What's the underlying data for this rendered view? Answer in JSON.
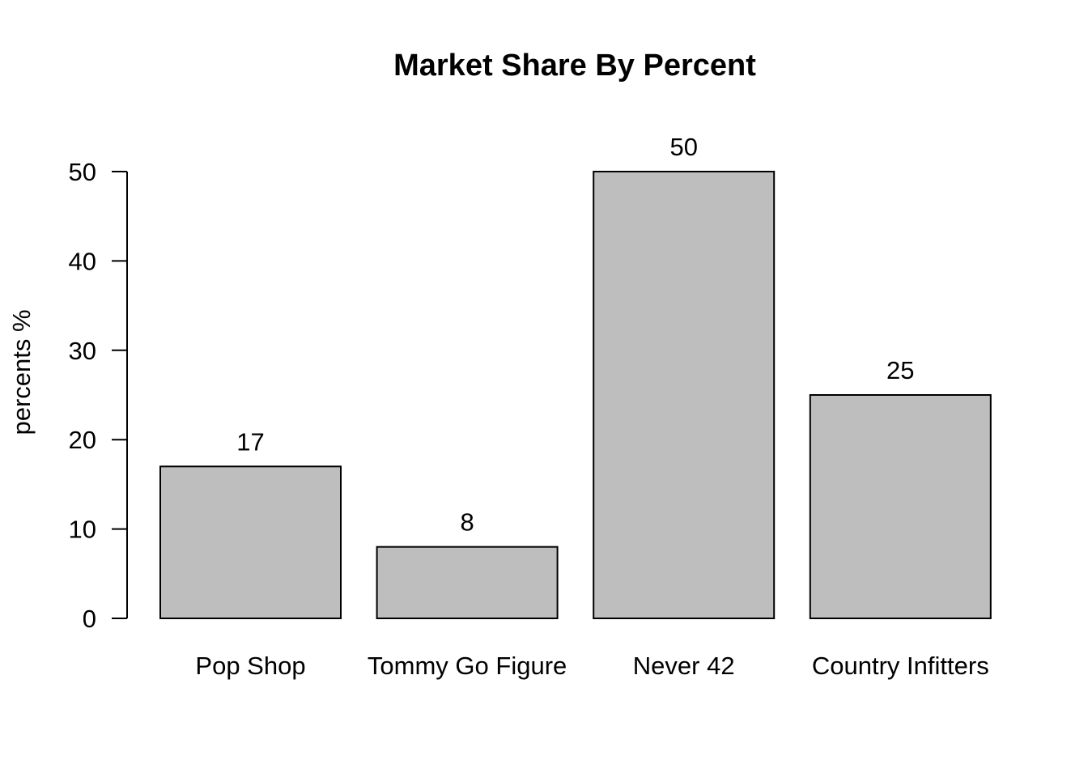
{
  "chart_data": {
    "type": "bar",
    "title": "Market Share By Percent",
    "xlabel": "",
    "ylabel": "percents %",
    "categories": [
      "Pop Shop",
      "Tommy Go Figure",
      "Never 42",
      "Country Infitters"
    ],
    "values": [
      17,
      8,
      50,
      25
    ],
    "data_labels": [
      "17",
      "8",
      "50",
      "25"
    ],
    "ylim": [
      0,
      50
    ],
    "yticks": [
      0,
      10,
      20,
      30,
      40,
      50
    ],
    "ytick_labels": [
      "0",
      "10",
      "20",
      "30",
      "40",
      "50"
    ],
    "bar_color": "#bebebe",
    "grid": false,
    "legend": "none"
  }
}
